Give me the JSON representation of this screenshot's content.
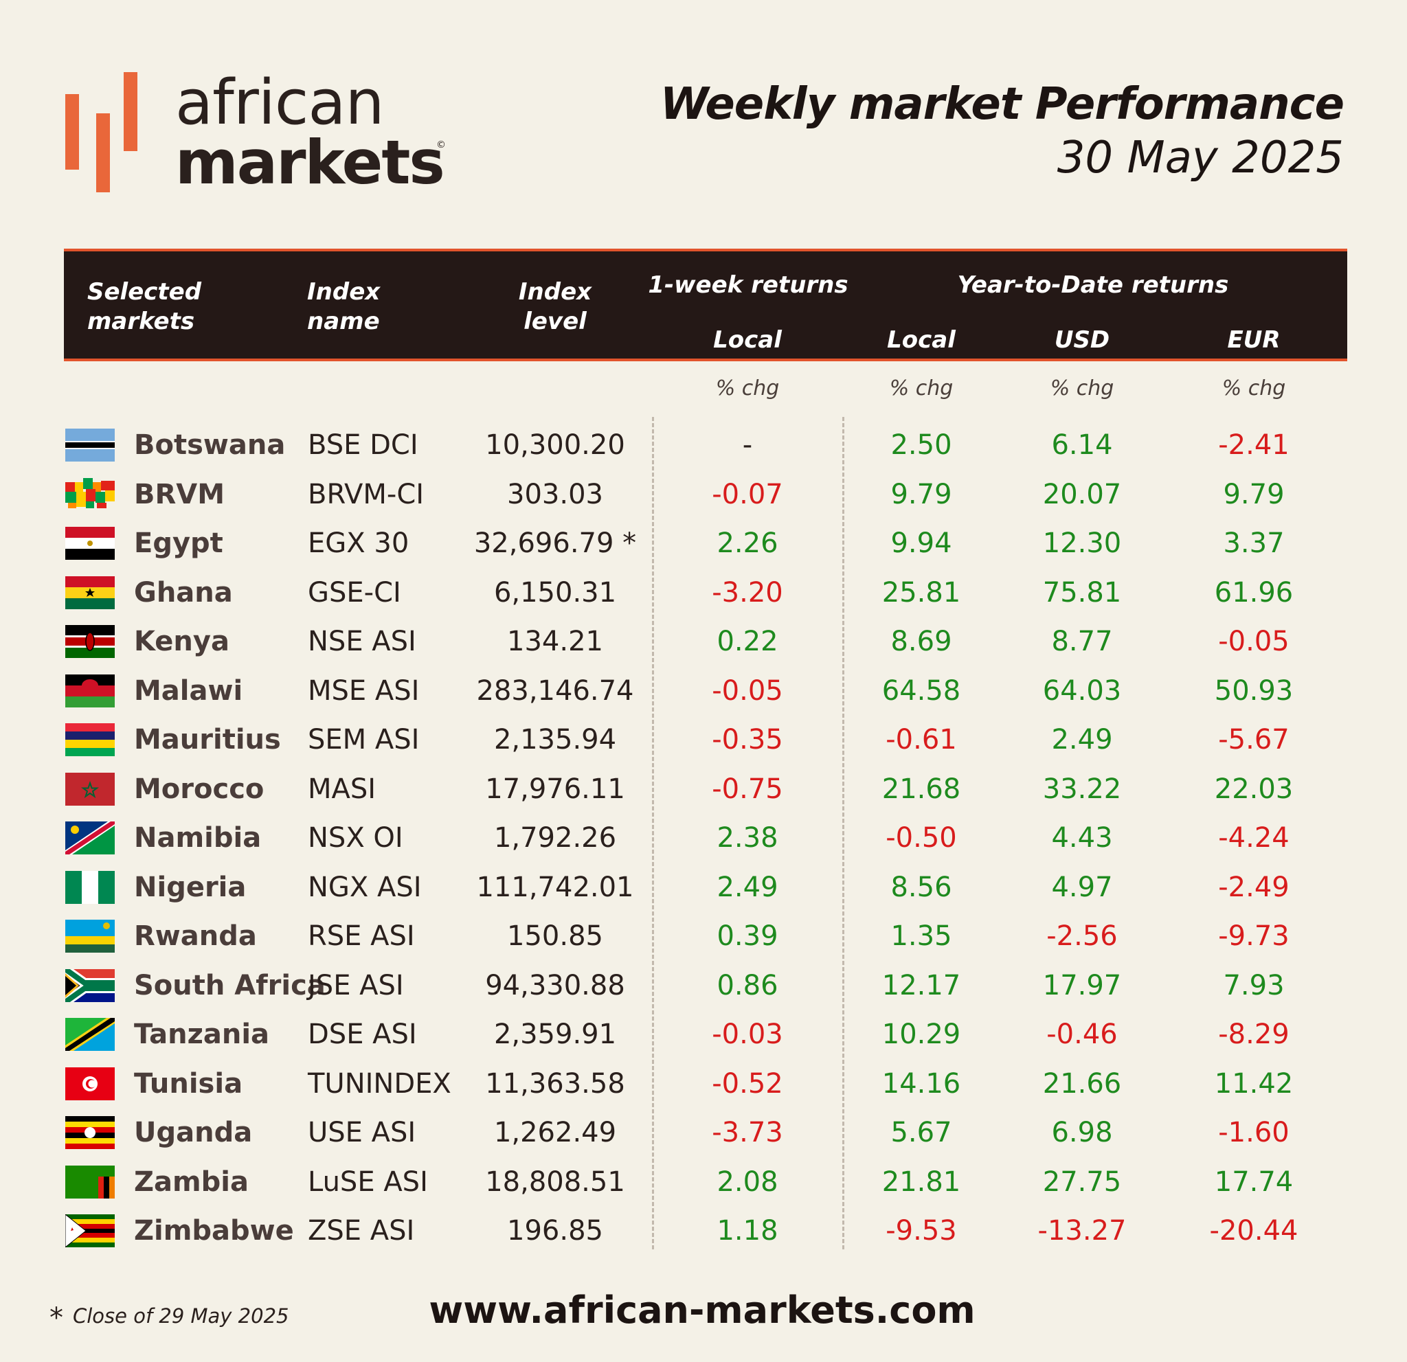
{
  "logo": {
    "word1": "african",
    "word2": "markets",
    "copyright": "©"
  },
  "headline": {
    "title": "Weekly market Performance",
    "date": "30 May 2025"
  },
  "colors": {
    "positive": "#1e8a1e",
    "negative": "#d81c1c",
    "neutral": "#2a201d",
    "header_bg": "#241816",
    "accent": "#e2542c"
  },
  "chart_data": {
    "type": "table",
    "columns": {
      "market": "Selected markets",
      "index_name": "Index name",
      "index_level": "Index level",
      "group_week": "1-week returns",
      "group_ytd": "Year-to-Date returns",
      "week_local": "Local",
      "ytd_local": "Local",
      "ytd_usd": "USD",
      "ytd_eur": "EUR",
      "unit": "% chg"
    },
    "rows": [
      {
        "market": "Botswana",
        "flag": "botswana-flag-icon",
        "index": "BSE DCI",
        "level": "10,300.20",
        "week_local": "-",
        "ytd_local": "2.50",
        "ytd_usd": "6.14",
        "ytd_eur": "-2.41"
      },
      {
        "market": "BRVM",
        "flag": "brvm-flag-icon",
        "index": "BRVM-CI",
        "level": "303.03",
        "week_local": "-0.07",
        "ytd_local": "9.79",
        "ytd_usd": "20.07",
        "ytd_eur": "9.79"
      },
      {
        "market": "Egypt",
        "flag": "egypt-flag-icon",
        "index": "EGX 30",
        "level": "32,696.79 *",
        "week_local": "2.26",
        "ytd_local": "9.94",
        "ytd_usd": "12.30",
        "ytd_eur": "3.37"
      },
      {
        "market": "Ghana",
        "flag": "ghana-flag-icon",
        "index": "GSE-CI",
        "level": "6,150.31",
        "week_local": "-3.20",
        "ytd_local": "25.81",
        "ytd_usd": "75.81",
        "ytd_eur": "61.96"
      },
      {
        "market": "Kenya",
        "flag": "kenya-flag-icon",
        "index": "NSE ASI",
        "level": "134.21",
        "week_local": "0.22",
        "ytd_local": "8.69",
        "ytd_usd": "8.77",
        "ytd_eur": "-0.05"
      },
      {
        "market": "Malawi",
        "flag": "malawi-flag-icon",
        "index": "MSE ASI",
        "level": "283,146.74",
        "week_local": "-0.05",
        "ytd_local": "64.58",
        "ytd_usd": "64.03",
        "ytd_eur": "50.93"
      },
      {
        "market": "Mauritius",
        "flag": "mauritius-flag-icon",
        "index": "SEM ASI",
        "level": "2,135.94",
        "week_local": "-0.35",
        "ytd_local": "-0.61",
        "ytd_usd": "2.49",
        "ytd_eur": "-5.67"
      },
      {
        "market": "Morocco",
        "flag": "morocco-flag-icon",
        "index": "MASI",
        "level": "17,976.11",
        "week_local": "-0.75",
        "ytd_local": "21.68",
        "ytd_usd": "33.22",
        "ytd_eur": "22.03"
      },
      {
        "market": "Namibia",
        "flag": "namibia-flag-icon",
        "index": "NSX OI",
        "level": "1,792.26",
        "week_local": "2.38",
        "ytd_local": "-0.50",
        "ytd_usd": "4.43",
        "ytd_eur": "-4.24"
      },
      {
        "market": "Nigeria",
        "flag": "nigeria-flag-icon",
        "index": "NGX ASI",
        "level": "111,742.01",
        "week_local": "2.49",
        "ytd_local": "8.56",
        "ytd_usd": "4.97",
        "ytd_eur": "-2.49"
      },
      {
        "market": "Rwanda",
        "flag": "rwanda-flag-icon",
        "index": "RSE ASI",
        "level": "150.85",
        "week_local": "0.39",
        "ytd_local": "1.35",
        "ytd_usd": "-2.56",
        "ytd_eur": "-9.73"
      },
      {
        "market": "South Africa",
        "flag": "south-africa-flag-icon",
        "index": "JSE ASI",
        "level": "94,330.88",
        "week_local": "0.86",
        "ytd_local": "12.17",
        "ytd_usd": "17.97",
        "ytd_eur": "7.93"
      },
      {
        "market": "Tanzania",
        "flag": "tanzania-flag-icon",
        "index": "DSE ASI",
        "level": "2,359.91",
        "week_local": "-0.03",
        "ytd_local": "10.29",
        "ytd_usd": "-0.46",
        "ytd_eur": "-8.29"
      },
      {
        "market": "Tunisia",
        "flag": "tunisia-flag-icon",
        "index": "TUNINDEX",
        "level": "11,363.58",
        "week_local": "-0.52",
        "ytd_local": "14.16",
        "ytd_usd": "21.66",
        "ytd_eur": "11.42"
      },
      {
        "market": "Uganda",
        "flag": "uganda-flag-icon",
        "index": "USE ASI",
        "level": "1,262.49",
        "week_local": "-3.73",
        "ytd_local": "5.67",
        "ytd_usd": "6.98",
        "ytd_eur": "-1.60"
      },
      {
        "market": "Zambia",
        "flag": "zambia-flag-icon",
        "index": "LuSE ASI",
        "level": "18,808.51",
        "week_local": "2.08",
        "ytd_local": "21.81",
        "ytd_usd": "27.75",
        "ytd_eur": "17.74"
      },
      {
        "market": "Zimbabwe",
        "flag": "zimbabwe-flag-icon",
        "index": "ZSE ASI",
        "level": "196.85",
        "week_local": "1.18",
        "ytd_local": "-9.53",
        "ytd_usd": "-13.27",
        "ytd_eur": "-20.44"
      }
    ]
  },
  "footer": {
    "star": "*",
    "note": "Close of 29 May 2025",
    "site": "www.african-markets.com"
  }
}
